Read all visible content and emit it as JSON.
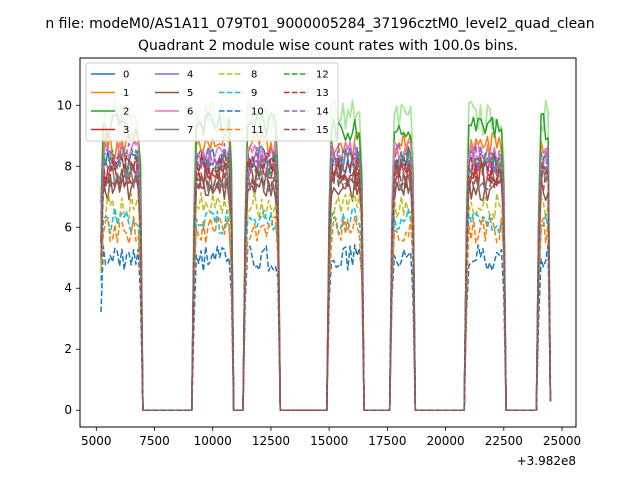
{
  "chart_data": {
    "type": "line",
    "suptitle": "n file: modeM0/AS1A11_079T01_9000005284_37196cztM0_level2_quad_clean",
    "title": "Quadrant 2 module wise count rates with 100.0s bins.",
    "xlabel": "",
    "ylabel": "",
    "x_offset_label": "+3.982e8",
    "xlim": [
      4300,
      25600
    ],
    "ylim": [
      -0.55,
      11.55
    ],
    "xticks": [
      5000,
      7500,
      10000,
      12500,
      15000,
      17500,
      20000,
      22500,
      25000
    ],
    "xtick_labels": [
      "5000",
      "7500",
      "10000",
      "12500",
      "15000",
      "17500",
      "20000",
      "22500",
      "25000"
    ],
    "yticks": [
      0,
      2,
      4,
      6,
      8,
      10
    ],
    "ytick_labels": [
      "0",
      "2",
      "4",
      "6",
      "8",
      "10"
    ],
    "grid": false,
    "legend_position": "top-left",
    "legend_columns": 4,
    "x_range": [
      5200,
      24500
    ],
    "bin_width": 100,
    "segments": [
      {
        "on": [
          5200,
          6900
        ],
        "off": [
          7000,
          9100
        ]
      },
      {
        "on": [
          9200,
          10800
        ],
        "off": [
          10900,
          11300
        ]
      },
      {
        "on": [
          11400,
          12800
        ],
        "off": [
          12900,
          14900
        ]
      },
      {
        "on": [
          15000,
          16400
        ],
        "off": [
          16500,
          17600
        ]
      },
      {
        "on": [
          17700,
          18600
        ],
        "off": [
          18700,
          20800
        ]
      },
      {
        "on": [
          20900,
          22500
        ],
        "off": [
          22600,
          23900
        ]
      },
      {
        "on": [
          24000,
          24500
        ]
      }
    ],
    "series": [
      {
        "name": "0",
        "color": "#1f77b4",
        "dash": "solid",
        "level": 8.2
      },
      {
        "name": "1",
        "color": "#ff7f0e",
        "dash": "solid",
        "level": 8.7
      },
      {
        "name": "2",
        "color": "#2ca02c",
        "dash": "solid",
        "level": 9.3
      },
      {
        "name": "3",
        "color": "#d62728",
        "dash": "solid",
        "level": 7.7
      },
      {
        "name": "4",
        "color": "#9467bd",
        "dash": "solid",
        "level": 8.0
      },
      {
        "name": "5",
        "color": "#8c564b",
        "dash": "solid",
        "level": 7.3
      },
      {
        "name": "6",
        "color": "#e377c2",
        "dash": "solid",
        "level": 8.4
      },
      {
        "name": "7",
        "color": "#7f7f7f",
        "dash": "solid",
        "level": 7.6
      },
      {
        "name": "8",
        "color": "#bcbd22",
        "dash": "dashed",
        "level": 6.7
      },
      {
        "name": "9",
        "color": "#17becf",
        "dash": "dashed",
        "level": 6.2
      },
      {
        "name": "10",
        "color": "#1f77b4",
        "dash": "dashed",
        "level": 5.0
      },
      {
        "name": "11",
        "color": "#ff7f0e",
        "dash": "dashed",
        "level": 5.9
      },
      {
        "name": "12",
        "color": "#2ca02c",
        "dash": "dashed",
        "level": 8.1
      },
      {
        "name": "13",
        "color": "#d62728",
        "dash": "dashed",
        "level": 8.0
      },
      {
        "name": "14",
        "color": "#9467bd",
        "dash": "dashed",
        "level": 8.3
      },
      {
        "name": "15",
        "color": "#8c564b",
        "dash": "dashed",
        "level": 7.6
      }
    ],
    "background_series": {
      "color": "#98df8a",
      "level": 9.6
    }
  }
}
